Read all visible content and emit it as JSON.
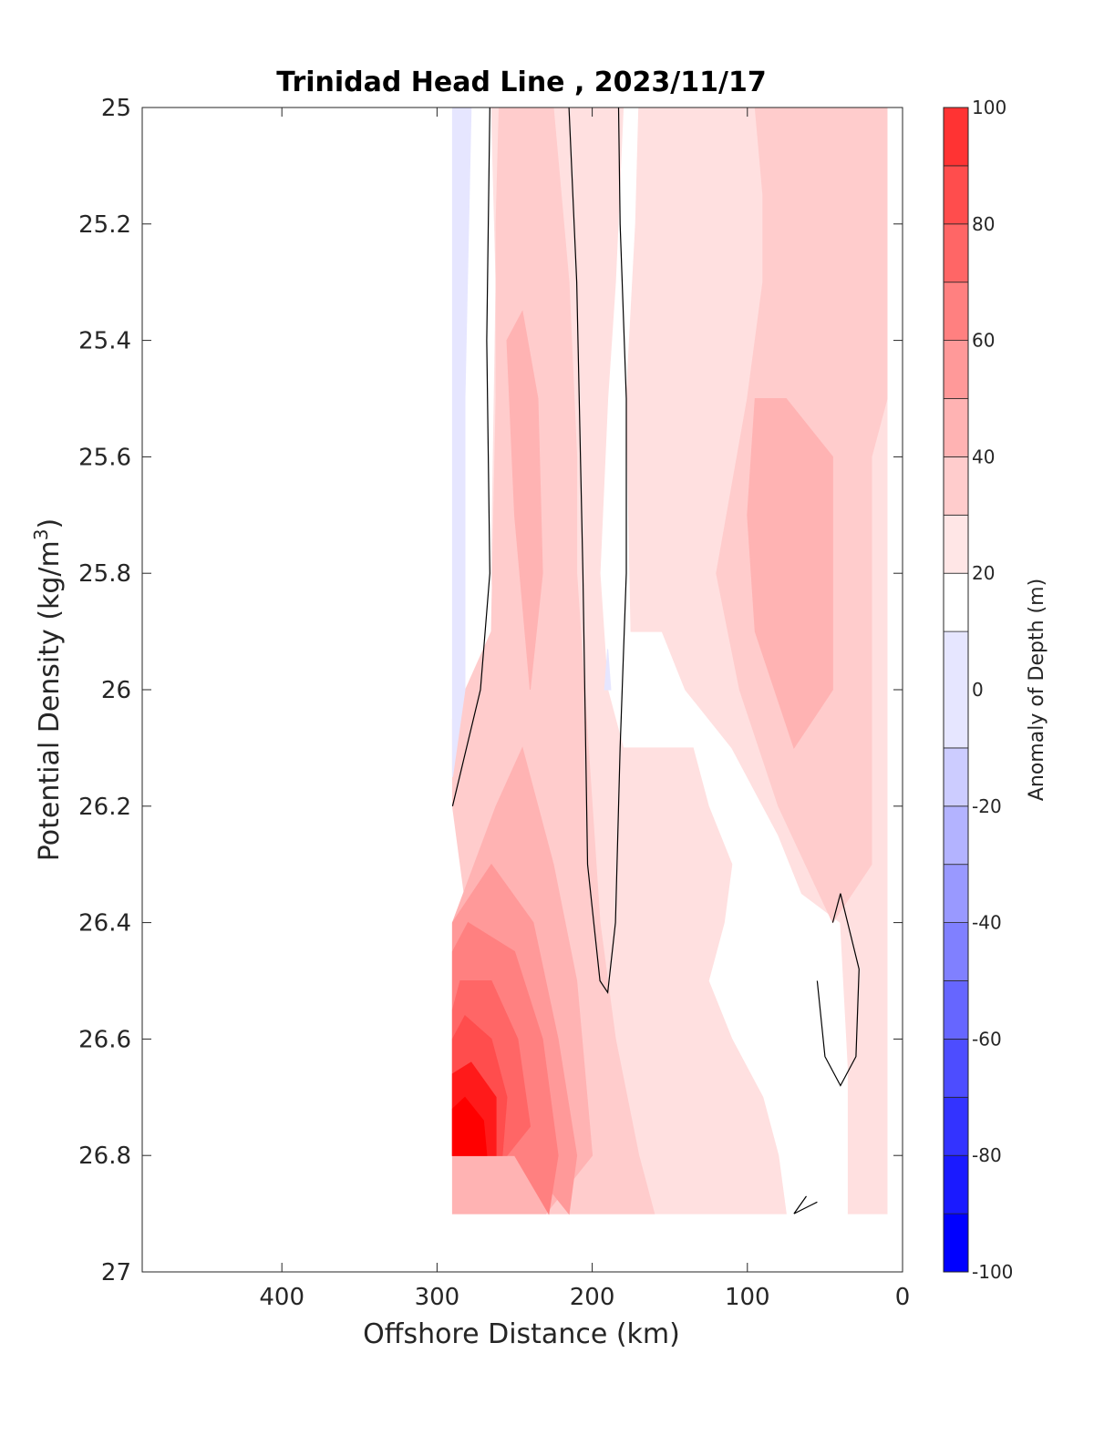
{
  "chart_data": {
    "type": "heatmap",
    "title": "Trinidad Head Line , 2023/11/17",
    "xlabel": "Offshore Distance (km)",
    "ylabel_main": "Potential Density (kg/m",
    "ylabel_sup": "3",
    "ylabel_close": ")",
    "xlim": [
      490,
      0
    ],
    "ylim": [
      25,
      27
    ],
    "x_reversed": true,
    "y_reversed": true,
    "x_ticks": [
      400,
      300,
      200,
      100,
      0
    ],
    "x_tick_labels": [
      "400",
      "300",
      "200",
      "100",
      "0"
    ],
    "y_ticks": [
      25,
      25.2,
      25.4,
      25.6,
      25.8,
      26,
      26.2,
      26.4,
      26.6,
      26.8,
      27
    ],
    "y_tick_labels": [
      "25",
      "25.2",
      "25.4",
      "25.6",
      "25.8",
      "26",
      "26.2",
      "26.4",
      "26.6",
      "26.8",
      "27"
    ],
    "colorbar": {
      "label": "Anomaly of Depth (m)",
      "range": [
        -100,
        100
      ],
      "levels": [
        -100,
        -90,
        -80,
        -70,
        -60,
        -50,
        -40,
        -30,
        -20,
        -10,
        10,
        20,
        30,
        40,
        50,
        60,
        70,
        80,
        90,
        100
      ],
      "ticks": [
        100,
        80,
        60,
        40,
        20,
        0,
        -20,
        -40,
        -60,
        -80,
        -100
      ],
      "tick_labels": [
        "100",
        "80",
        "60",
        "40",
        "20",
        "0",
        "-20",
        "-40",
        "-60",
        "-80",
        "-100"
      ],
      "colors": [
        "#0000ff",
        "#1a1aff",
        "#3333ff",
        "#4d4dff",
        "#6666ff",
        "#8080ff",
        "#9999ff",
        "#b3b3ff",
        "#ccccff",
        "#e6e6ff",
        "#ffffff",
        "#ffe6e6",
        "#ffcccc",
        "#ffb3b3",
        "#ff9999",
        "#ff8080",
        "#ff6666",
        "#ff4d4d",
        "#ff3333",
        "#ff1a1a",
        "#ff0000"
      ]
    },
    "regions": [
      {
        "level": 10,
        "color": "#ffe0e0",
        "points": [
          [
            290,
            26.9
          ],
          [
            170,
            26.9
          ],
          [
            150,
            26.9
          ],
          [
            75,
            26.9
          ],
          [
            80,
            26.8
          ],
          [
            90,
            26.7
          ],
          [
            110,
            26.6
          ],
          [
            125,
            26.5
          ],
          [
            115,
            26.4
          ],
          [
            110,
            26.3
          ],
          [
            125,
            26.2
          ],
          [
            135,
            26.1
          ],
          [
            180,
            26.1
          ],
          [
            190,
            26.0
          ],
          [
            195,
            25.8
          ],
          [
            190,
            25.5
          ],
          [
            185,
            25.3
          ],
          [
            180,
            25.0
          ],
          [
            265,
            25.0
          ],
          [
            262,
            25.3
          ],
          [
            265,
            25.8
          ],
          [
            260,
            26.0
          ],
          [
            270,
            26.2
          ],
          [
            290,
            26.5
          ]
        ]
      },
      {
        "level": 10,
        "color": "#ffe0e0",
        "points": [
          [
            170,
            25.0
          ],
          [
            10,
            25.0
          ],
          [
            10,
            26.9
          ],
          [
            35,
            26.9
          ],
          [
            35,
            26.65
          ],
          [
            40,
            26.4
          ],
          [
            65,
            26.35
          ],
          [
            80,
            26.25
          ],
          [
            110,
            26.1
          ],
          [
            140,
            26.0
          ],
          [
            155,
            25.9
          ],
          [
            175,
            25.9
          ],
          [
            178,
            25.5
          ],
          [
            172,
            25.2
          ]
        ]
      },
      {
        "level": 20,
        "color": "#ffcccc",
        "points": [
          [
            260,
            25.0
          ],
          [
            225,
            25.0
          ],
          [
            215,
            25.3
          ],
          [
            210,
            25.6
          ],
          [
            210,
            25.8
          ],
          [
            205,
            26.0
          ],
          [
            200,
            26.2
          ],
          [
            195,
            26.4
          ],
          [
            185,
            26.6
          ],
          [
            170,
            26.8
          ],
          [
            160,
            26.9
          ],
          [
            230,
            26.9
          ],
          [
            270,
            26.6
          ],
          [
            290,
            26.2
          ],
          [
            290,
            26.05
          ],
          [
            265,
            25.9
          ],
          [
            262,
            25.5
          ],
          [
            262,
            25.2
          ]
        ]
      },
      {
        "level": 20,
        "color": "#ffcccc",
        "points": [
          [
            95,
            25.0
          ],
          [
            10,
            25.0
          ],
          [
            10,
            25.5
          ],
          [
            20,
            25.6
          ],
          [
            20,
            26.3
          ],
          [
            45,
            26.4
          ],
          [
            80,
            26.2
          ],
          [
            105,
            26.0
          ],
          [
            120,
            25.8
          ],
          [
            100,
            25.5
          ],
          [
            90,
            25.3
          ],
          [
            90,
            25.15
          ]
        ]
      },
      {
        "level": 30,
        "color": "#ffb3b3",
        "points": [
          [
            290,
            26.9
          ],
          [
            230,
            26.9
          ],
          [
            200,
            26.8
          ],
          [
            210,
            26.5
          ],
          [
            225,
            26.3
          ],
          [
            245,
            26.1
          ],
          [
            262,
            26.2
          ],
          [
            290,
            26.4
          ]
        ]
      },
      {
        "level": 30,
        "color": "#ffb3b3",
        "points": [
          [
            255,
            25.4
          ],
          [
            245,
            25.35
          ],
          [
            235,
            25.5
          ],
          [
            232,
            25.8
          ],
          [
            240,
            26.0
          ],
          [
            250,
            25.7
          ]
        ]
      },
      {
        "level": 30,
        "color": "#ffb3b3",
        "points": [
          [
            95,
            25.5
          ],
          [
            75,
            25.5
          ],
          [
            45,
            25.6
          ],
          [
            45,
            26.0
          ],
          [
            70,
            26.1
          ],
          [
            95,
            25.9
          ],
          [
            100,
            25.7
          ]
        ]
      },
      {
        "level": 40,
        "color": "#ff9999",
        "points": [
          [
            290,
            26.8
          ],
          [
            245,
            26.8
          ],
          [
            215,
            26.9
          ],
          [
            210,
            26.8
          ],
          [
            222,
            26.6
          ],
          [
            238,
            26.4
          ],
          [
            265,
            26.3
          ],
          [
            290,
            26.4
          ]
        ]
      },
      {
        "level": 50,
        "color": "#ff8080",
        "points": [
          [
            290,
            26.8
          ],
          [
            250,
            26.8
          ],
          [
            228,
            26.9
          ],
          [
            222,
            26.8
          ],
          [
            232,
            26.6
          ],
          [
            250,
            26.45
          ],
          [
            280,
            26.4
          ],
          [
            290,
            26.45
          ]
        ]
      },
      {
        "level": 60,
        "color": "#ff6666",
        "points": [
          [
            290,
            26.8
          ],
          [
            255,
            26.8
          ],
          [
            240,
            26.75
          ],
          [
            248,
            26.6
          ],
          [
            265,
            26.5
          ],
          [
            285,
            26.5
          ],
          [
            290,
            26.55
          ]
        ]
      },
      {
        "level": 70,
        "color": "#ff4d4d",
        "points": [
          [
            290,
            26.8
          ],
          [
            258,
            26.8
          ],
          [
            255,
            26.7
          ],
          [
            265,
            26.6
          ],
          [
            282,
            26.56
          ],
          [
            290,
            26.6
          ]
        ]
      },
      {
        "level": 80,
        "color": "#ff1a1a",
        "points": [
          [
            290,
            26.8
          ],
          [
            262,
            26.8
          ],
          [
            262,
            26.7
          ],
          [
            278,
            26.64
          ],
          [
            290,
            26.66
          ]
        ]
      },
      {
        "level": 90,
        "color": "#ff0000",
        "points": [
          [
            290,
            26.8
          ],
          [
            268,
            26.8
          ],
          [
            270,
            26.74
          ],
          [
            282,
            26.7
          ],
          [
            290,
            26.72
          ]
        ]
      },
      {
        "level": -10,
        "color": "#e6e6ff",
        "points": [
          [
            290,
            25.0
          ],
          [
            278,
            25.0
          ],
          [
            282,
            25.5
          ],
          [
            282,
            26.0
          ],
          [
            290,
            26.15
          ]
        ]
      },
      {
        "level": -10,
        "color": "#e6e6ff",
        "points": [
          [
            192,
            26.0
          ],
          [
            190,
            25.93
          ],
          [
            188,
            26.0
          ]
        ]
      }
    ],
    "contours_zero": [
      [
        [
          266,
          25.0
        ],
        [
          268,
          25.4
        ],
        [
          266,
          25.8
        ],
        [
          272,
          26.0
        ],
        [
          290,
          26.2
        ]
      ],
      [
        [
          215,
          25.0
        ],
        [
          210,
          25.3
        ],
        [
          206,
          25.8
        ],
        [
          203,
          26.3
        ],
        [
          195,
          26.5
        ],
        [
          190,
          26.52
        ],
        [
          185,
          26.4
        ],
        [
          182,
          26.1
        ],
        [
          178,
          25.8
        ],
        [
          178,
          25.5
        ],
        [
          182,
          25.2
        ],
        [
          183,
          25.0
        ]
      ],
      [
        [
          45,
          26.4
        ],
        [
          40,
          26.35
        ],
        [
          28,
          26.48
        ],
        [
          30,
          26.63
        ],
        [
          40,
          26.68
        ],
        [
          50,
          26.63
        ],
        [
          55,
          26.5
        ]
      ],
      [
        [
          55,
          26.88
        ],
        [
          70,
          26.9
        ],
        [
          62,
          26.87
        ]
      ]
    ]
  }
}
